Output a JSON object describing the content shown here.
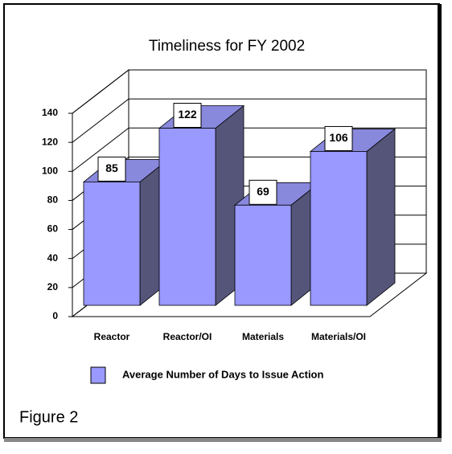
{
  "chart_data": {
    "type": "bar3d",
    "title": "Timeliness for FY 2002",
    "categories": [
      "Reactor",
      "Reactor/OI",
      "Materials",
      "Materials/OI"
    ],
    "series": [
      {
        "name": "Average Number of Days to Issue Action",
        "color": "#9999ff",
        "values": [
          85,
          122,
          69,
          106
        ]
      }
    ],
    "ylim": [
      0,
      140
    ],
    "yticks": [
      0,
      20,
      40,
      60,
      80,
      100,
      120,
      140
    ],
    "grid": true,
    "legend": "bottom"
  },
  "figure_label": "Figure 2"
}
